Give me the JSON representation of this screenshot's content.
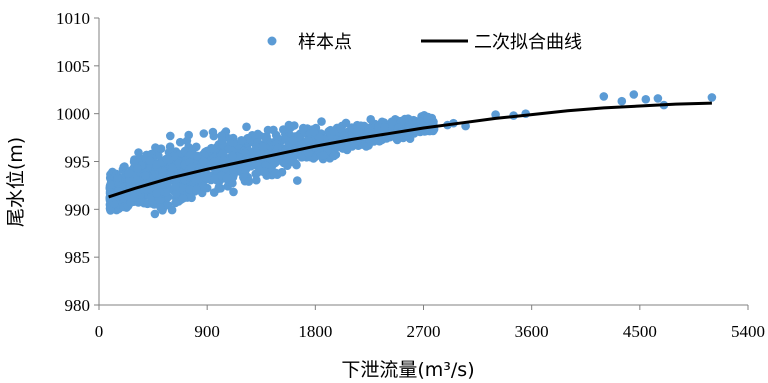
{
  "chart_data": {
    "type": "scatter",
    "title": "",
    "xlabel": "下泄流量(m³/s)",
    "ylabel": "尾水位(m)",
    "xlim": [
      0,
      5400
    ],
    "ylim": [
      980,
      1010
    ],
    "x_ticks": [
      "0",
      "900",
      "1800",
      "2700",
      "3600",
      "4500",
      "5400"
    ],
    "y_ticks": [
      "980",
      "985",
      "990",
      "995",
      "1000",
      "1005",
      "1010"
    ],
    "legend_position": "top",
    "legend": {
      "points_label": "样本点",
      "curve_label": "二次拟合曲线"
    },
    "colors": {
      "points": "#5B9BD5",
      "curve": "#000000",
      "axis": "#808080"
    },
    "fit_curve": {
      "name": "二次拟合曲线",
      "x": [
        80,
        300,
        600,
        900,
        1200,
        1500,
        1800,
        2100,
        2400,
        2700,
        3000,
        3300,
        3600,
        3900,
        4200,
        4500,
        4800,
        5100
      ],
      "y": [
        991.3,
        992.2,
        993.3,
        994.2,
        995.0,
        995.8,
        996.6,
        997.3,
        997.9,
        998.5,
        999.0,
        999.5,
        999.9,
        1000.3,
        1000.6,
        1000.8,
        1001.0,
        1001.1
      ]
    },
    "sample_points": {
      "name": "样本点",
      "x": [
        4200,
        4350,
        4450,
        4550,
        4650,
        4700,
        5100,
        3300,
        3450,
        3550,
        2900,
        2950,
        3050,
        1650,
        1600,
        1700,
        1580,
        90,
        110
      ],
      "y": [
        1001.8,
        1001.3,
        1002.0,
        1001.5,
        1001.6,
        1000.9,
        1001.7,
        999.9,
        999.8,
        1000.0,
        998.8,
        999.0,
        998.7,
        993.0,
        998.6,
        998.5,
        998.8,
        991.2,
        991.6
      ]
    },
    "sample_band": {
      "description_source": "dense cloud of sample points",
      "x": [
        100,
        300,
        600,
        900,
        1200,
        1500,
        1800,
        2100,
        2400,
        2700
      ],
      "center": [
        991.8,
        992.6,
        993.5,
        994.4,
        995.3,
        996.1,
        996.9,
        997.6,
        998.3,
        998.8
      ],
      "spread": [
        0.9,
        1.4,
        1.6,
        1.6,
        1.5,
        1.2,
        0.9,
        0.7,
        0.6,
        0.5
      ]
    }
  }
}
